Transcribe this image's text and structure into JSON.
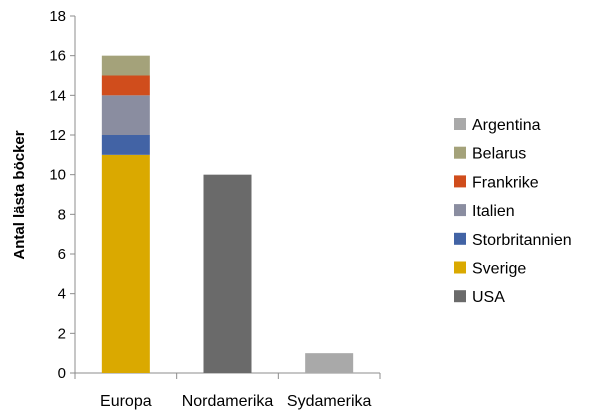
{
  "chart_data": {
    "type": "bar",
    "stacked": true,
    "categories": [
      "Europa",
      "Nordamerika",
      "Sydamerika"
    ],
    "ylabel": "Antal lästa böcker",
    "xlabel": "",
    "ylim": [
      0,
      18
    ],
    "yticks": [
      0,
      2,
      4,
      6,
      8,
      10,
      12,
      14,
      16,
      18
    ],
    "grid": false,
    "legend_position": "right",
    "series": [
      {
        "name": "Sverige",
        "color": "#DAA900",
        "values": [
          11,
          0,
          0
        ]
      },
      {
        "name": "Storbritannien",
        "color": "#4263A5",
        "values": [
          1,
          0,
          0
        ]
      },
      {
        "name": "Italien",
        "color": "#8A8DA0",
        "values": [
          2,
          0,
          0
        ]
      },
      {
        "name": "Frankrike",
        "color": "#D04D1C",
        "values": [
          1,
          0,
          0
        ]
      },
      {
        "name": "Belarus",
        "color": "#A4A27A",
        "values": [
          1,
          0,
          0
        ]
      },
      {
        "name": "Argentina",
        "color": "#A9A9A9",
        "values": [
          0,
          0,
          1
        ]
      },
      {
        "name": "USA",
        "color": "#6A6A6A",
        "values": [
          0,
          10,
          0
        ]
      }
    ],
    "legend_order": [
      "Argentina",
      "Belarus",
      "Frankrike",
      "Italien",
      "Storbritannien",
      "Sverige",
      "USA"
    ]
  }
}
